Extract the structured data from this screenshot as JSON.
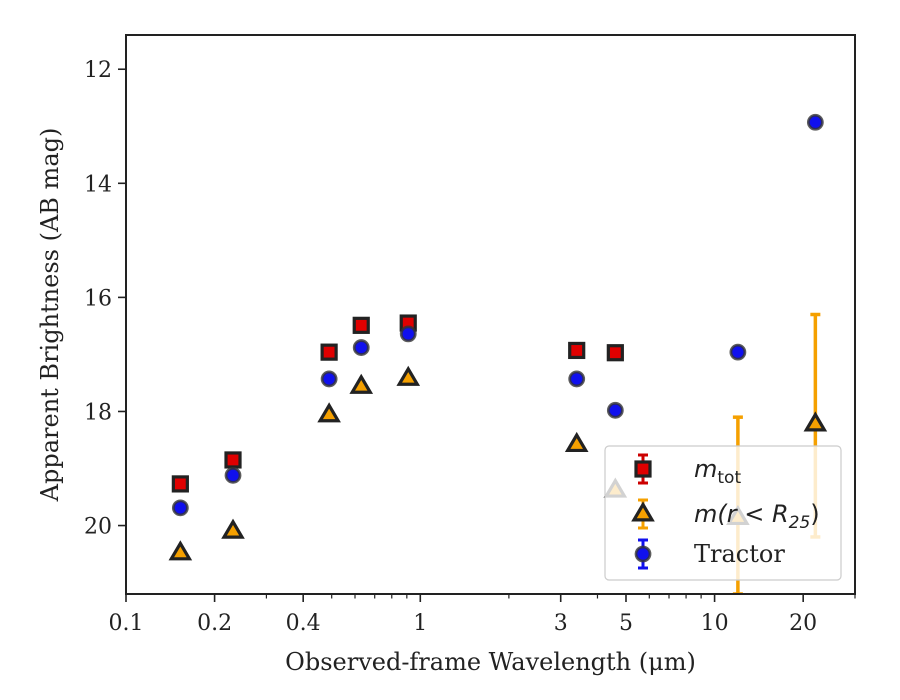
{
  "chart_data": {
    "type": "scatter",
    "xscale": "log",
    "y_inverted": true,
    "xlabel": "Observed-frame Wavelength (μm)",
    "ylabel": "Apparent Brightness (AB mag)",
    "xlim": [
      0.1,
      30
    ],
    "ylim": [
      21.2,
      11.4
    ],
    "x_ticks": [
      0.1,
      0.2,
      0.4,
      1,
      3,
      5,
      10,
      20
    ],
    "x_tick_labels": [
      "0.1",
      "0.2",
      "0.4",
      "1",
      "3",
      "5",
      "10",
      "20"
    ],
    "y_ticks": [
      12,
      14,
      16,
      18,
      20
    ],
    "y_tick_labels": [
      "12",
      "14",
      "16",
      "18",
      "20"
    ],
    "legend": {
      "position": "lower-right",
      "entries": [
        {
          "label_main": "m",
          "label_sub": "tot",
          "marker": "square"
        },
        {
          "label_main": "m(r < R",
          "label_sub": "25",
          "label_tail": ")",
          "marker": "triangle"
        },
        {
          "label_main": "Tractor",
          "marker": "circle"
        }
      ]
    },
    "series": [
      {
        "name": "m_tot",
        "marker": "square",
        "color": "#e00000",
        "edge_color": "#222222",
        "error_color": "#cc0000",
        "points": [
          {
            "x": 0.153,
            "y": 19.27
          },
          {
            "x": 0.231,
            "y": 18.85
          },
          {
            "x": 0.49,
            "y": 16.96
          },
          {
            "x": 0.63,
            "y": 16.49
          },
          {
            "x": 0.91,
            "y": 16.45
          },
          {
            "x": 3.4,
            "y": 16.93
          },
          {
            "x": 4.6,
            "y": 16.97
          }
        ]
      },
      {
        "name": "m(r < R25)",
        "marker": "triangle",
        "color": "#f5a000",
        "edge_color": "#222222",
        "error_color": "#f5a000",
        "points": [
          {
            "x": 0.153,
            "y": 20.48
          },
          {
            "x": 0.231,
            "y": 20.1
          },
          {
            "x": 0.49,
            "y": 18.06
          },
          {
            "x": 0.63,
            "y": 17.56
          },
          {
            "x": 0.91,
            "y": 17.42
          },
          {
            "x": 3.4,
            "y": 18.58
          },
          {
            "x": 4.6,
            "y": 19.38
          },
          {
            "x": 12,
            "y": 19.86,
            "yerr_low": 18.1,
            "yerr_high": 21.2
          },
          {
            "x": 22,
            "y": 18.22,
            "yerr_low": 16.3,
            "yerr_high": 20.2
          }
        ]
      },
      {
        "name": "Tractor",
        "marker": "circle",
        "color": "#1010ee",
        "edge_color": "#333333",
        "error_color": "#1010ee",
        "points": [
          {
            "x": 0.153,
            "y": 19.69
          },
          {
            "x": 0.231,
            "y": 19.12
          },
          {
            "x": 0.49,
            "y": 17.43
          },
          {
            "x": 0.63,
            "y": 16.88
          },
          {
            "x": 0.91,
            "y": 16.64
          },
          {
            "x": 3.4,
            "y": 17.43
          },
          {
            "x": 4.6,
            "y": 17.98
          },
          {
            "x": 12,
            "y": 16.96
          },
          {
            "x": 22,
            "y": 12.93
          }
        ]
      }
    ]
  }
}
